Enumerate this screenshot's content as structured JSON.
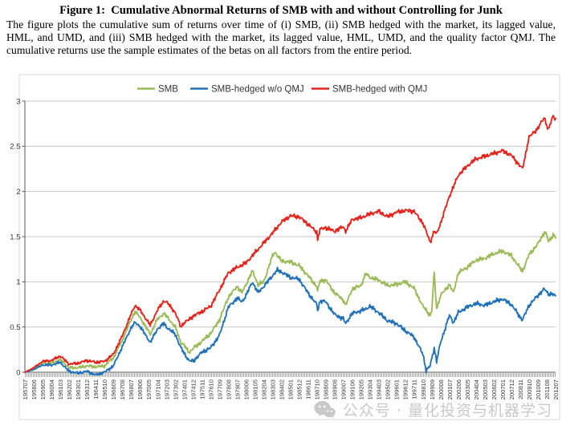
{
  "figure": {
    "title": "Figure 1:  Cumulative Abnormal Returns of SMB with and without Controlling for Junk",
    "caption": "The figure plots the cumulative sum of returns over time of (i) SMB, (ii) SMB hedged with the market, its lagged value, HML, and UMD, and (iii) SMB hedged with the market, its lagged value, HML, UMD, and the quality factor QMJ. The cumulative returns use the sample estimates of the betas on all factors from the entire period."
  },
  "watermark": {
    "icon": "wechat-icon",
    "text": "公众号 · 量化投资与机器学习"
  },
  "chart_data": {
    "type": "line",
    "title": "",
    "xlabel": "",
    "ylabel": "",
    "ylim": [
      0,
      3
    ],
    "y_ticks": [
      "0",
      "0.5",
      "1",
      "1.5",
      "2",
      "2.5",
      "3"
    ],
    "grid": true,
    "legend_position": "top-center",
    "x_months_per_tick": 11,
    "x_tick_labels": [
      "195707",
      "195806",
      "195905",
      "196004",
      "196103",
      "196202",
      "196301",
      "196312",
      "196411",
      "196510",
      "196609",
      "196708",
      "196807",
      "196906",
      "197005",
      "197104",
      "197203",
      "197302",
      "197401",
      "197412",
      "197511",
      "197610",
      "197709",
      "197808",
      "197907",
      "198006",
      "198105",
      "198204",
      "198303",
      "198402",
      "198501",
      "198512",
      "198611",
      "198710",
      "198809",
      "198908",
      "199007",
      "199106",
      "199205",
      "199304",
      "199403",
      "199502",
      "199601",
      "199612",
      "199711",
      "199810",
      "199909",
      "200008",
      "200107",
      "200206",
      "200305",
      "200404",
      "200503",
      "200602",
      "200701",
      "200712",
      "200811",
      "200910",
      "201009",
      "201108",
      "201207"
    ],
    "axis_color": "#595959",
    "grid_color": "#c9c9c9",
    "frame_color": "#d8d8d8",
    "series": [
      {
        "name": "SMB",
        "color": "#9BBB59",
        "points": [
          [
            0,
            0
          ],
          [
            11,
            0.04
          ],
          [
            22,
            0.1
          ],
          [
            33,
            0.1
          ],
          [
            44,
            0.14
          ],
          [
            55,
            0.05
          ],
          [
            66,
            0.05
          ],
          [
            77,
            0.07
          ],
          [
            88,
            0.06
          ],
          [
            99,
            0.07
          ],
          [
            110,
            0.16
          ],
          [
            121,
            0.35
          ],
          [
            132,
            0.58
          ],
          [
            137,
            0.67
          ],
          [
            143,
            0.61
          ],
          [
            156,
            0.42
          ],
          [
            165,
            0.59
          ],
          [
            173,
            0.65
          ],
          [
            176,
            0.62
          ],
          [
            187,
            0.5
          ],
          [
            194,
            0.33
          ],
          [
            198,
            0.3
          ],
          [
            204,
            0.22
          ],
          [
            209,
            0.26
          ],
          [
            220,
            0.34
          ],
          [
            231,
            0.43
          ],
          [
            242,
            0.58
          ],
          [
            253,
            0.83
          ],
          [
            264,
            0.95
          ],
          [
            270,
            0.88
          ],
          [
            275,
            0.97
          ],
          [
            283,
            1.12
          ],
          [
            290,
            0.97
          ],
          [
            297,
            1.0
          ],
          [
            308,
            1.29
          ],
          [
            311,
            1.33
          ],
          [
            319,
            1.23
          ],
          [
            330,
            1.22
          ],
          [
            341,
            1.18
          ],
          [
            352,
            1.07
          ],
          [
            363,
            0.95
          ],
          [
            364,
            0.89
          ],
          [
            367,
            1.01
          ],
          [
            374,
            1.02
          ],
          [
            385,
            0.88
          ],
          [
            396,
            0.8
          ],
          [
            399,
            0.74
          ],
          [
            407,
            0.92
          ],
          [
            418,
            0.96
          ],
          [
            424,
            1.09
          ],
          [
            429,
            1.05
          ],
          [
            440,
            1.02
          ],
          [
            451,
            0.96
          ],
          [
            462,
            0.97
          ],
          [
            473,
            1.0
          ],
          [
            484,
            0.93
          ],
          [
            495,
            0.73
          ],
          [
            504,
            0.63
          ],
          [
            506,
            0.68
          ],
          [
            509,
            1.1
          ],
          [
            512,
            0.7
          ],
          [
            517,
            0.85
          ],
          [
            528,
            0.97
          ],
          [
            533,
            0.88
          ],
          [
            539,
            1.1
          ],
          [
            550,
            1.16
          ],
          [
            561,
            1.24
          ],
          [
            572,
            1.26
          ],
          [
            583,
            1.31
          ],
          [
            594,
            1.34
          ],
          [
            605,
            1.29
          ],
          [
            616,
            1.15
          ],
          [
            619,
            1.12
          ],
          [
            627,
            1.3
          ],
          [
            638,
            1.42
          ],
          [
            646,
            1.55
          ],
          [
            649,
            1.52
          ],
          [
            651,
            1.44
          ],
          [
            657,
            1.52
          ],
          [
            660,
            1.5
          ]
        ]
      },
      {
        "name": "SMB-hedged w/o QMJ",
        "color": "#2272B9",
        "points": [
          [
            0,
            0
          ],
          [
            11,
            0.03
          ],
          [
            22,
            0.08
          ],
          [
            33,
            0.08
          ],
          [
            44,
            0.11
          ],
          [
            55,
            0.01
          ],
          [
            66,
            -0.01
          ],
          [
            77,
            0.01
          ],
          [
            88,
            -0.03
          ],
          [
            99,
            0.0
          ],
          [
            110,
            0.07
          ],
          [
            121,
            0.28
          ],
          [
            132,
            0.49
          ],
          [
            137,
            0.55
          ],
          [
            143,
            0.51
          ],
          [
            156,
            0.33
          ],
          [
            165,
            0.48
          ],
          [
            173,
            0.54
          ],
          [
            176,
            0.5
          ],
          [
            187,
            0.42
          ],
          [
            194,
            0.27
          ],
          [
            198,
            0.21
          ],
          [
            204,
            0.13
          ],
          [
            209,
            0.12
          ],
          [
            220,
            0.22
          ],
          [
            231,
            0.27
          ],
          [
            242,
            0.41
          ],
          [
            253,
            0.72
          ],
          [
            264,
            0.82
          ],
          [
            270,
            0.78
          ],
          [
            275,
            0.85
          ],
          [
            283,
            1.0
          ],
          [
            290,
            0.88
          ],
          [
            297,
            0.95
          ],
          [
            308,
            1.07
          ],
          [
            314,
            1.13
          ],
          [
            319,
            1.11
          ],
          [
            330,
            1.05
          ],
          [
            341,
            1.03
          ],
          [
            352,
            0.88
          ],
          [
            363,
            0.75
          ],
          [
            364,
            0.68
          ],
          [
            367,
            0.79
          ],
          [
            374,
            0.78
          ],
          [
            385,
            0.64
          ],
          [
            396,
            0.59
          ],
          [
            399,
            0.54
          ],
          [
            407,
            0.65
          ],
          [
            418,
            0.68
          ],
          [
            424,
            0.7
          ],
          [
            429,
            0.73
          ],
          [
            440,
            0.66
          ],
          [
            451,
            0.57
          ],
          [
            462,
            0.54
          ],
          [
            473,
            0.46
          ],
          [
            484,
            0.39
          ],
          [
            495,
            0.2
          ],
          [
            499,
            0.02
          ],
          [
            504,
            0.07
          ],
          [
            509,
            0.27
          ],
          [
            512,
            0.12
          ],
          [
            517,
            0.33
          ],
          [
            528,
            0.63
          ],
          [
            533,
            0.55
          ],
          [
            539,
            0.66
          ],
          [
            550,
            0.72
          ],
          [
            561,
            0.76
          ],
          [
            572,
            0.74
          ],
          [
            583,
            0.78
          ],
          [
            594,
            0.81
          ],
          [
            605,
            0.75
          ],
          [
            616,
            0.61
          ],
          [
            619,
            0.58
          ],
          [
            627,
            0.74
          ],
          [
            638,
            0.85
          ],
          [
            646,
            0.92
          ],
          [
            651,
            0.87
          ],
          [
            657,
            0.86
          ],
          [
            660,
            0.84
          ]
        ]
      },
      {
        "name": "SMB-hedged with QMJ",
        "color": "#E4251D",
        "points": [
          [
            0,
            0
          ],
          [
            11,
            0.05
          ],
          [
            22,
            0.12
          ],
          [
            33,
            0.13
          ],
          [
            44,
            0.18
          ],
          [
            55,
            0.09
          ],
          [
            66,
            0.1
          ],
          [
            77,
            0.13
          ],
          [
            88,
            0.11
          ],
          [
            99,
            0.12
          ],
          [
            110,
            0.2
          ],
          [
            121,
            0.4
          ],
          [
            132,
            0.64
          ],
          [
            137,
            0.74
          ],
          [
            143,
            0.69
          ],
          [
            156,
            0.52
          ],
          [
            165,
            0.69
          ],
          [
            173,
            0.79
          ],
          [
            176,
            0.78
          ],
          [
            187,
            0.66
          ],
          [
            194,
            0.5
          ],
          [
            198,
            0.55
          ],
          [
            204,
            0.58
          ],
          [
            209,
            0.62
          ],
          [
            220,
            0.67
          ],
          [
            231,
            0.73
          ],
          [
            242,
            0.91
          ],
          [
            253,
            1.1
          ],
          [
            264,
            1.16
          ],
          [
            275,
            1.21
          ],
          [
            286,
            1.32
          ],
          [
            297,
            1.43
          ],
          [
            308,
            1.54
          ],
          [
            319,
            1.66
          ],
          [
            330,
            1.73
          ],
          [
            341,
            1.72
          ],
          [
            352,
            1.64
          ],
          [
            363,
            1.55
          ],
          [
            364,
            1.47
          ],
          [
            367,
            1.58
          ],
          [
            374,
            1.6
          ],
          [
            385,
            1.56
          ],
          [
            396,
            1.61
          ],
          [
            399,
            1.56
          ],
          [
            407,
            1.69
          ],
          [
            418,
            1.71
          ],
          [
            429,
            1.75
          ],
          [
            440,
            1.78
          ],
          [
            451,
            1.72
          ],
          [
            462,
            1.77
          ],
          [
            473,
            1.79
          ],
          [
            484,
            1.78
          ],
          [
            495,
            1.65
          ],
          [
            504,
            1.44
          ],
          [
            509,
            1.56
          ],
          [
            512,
            1.53
          ],
          [
            517,
            1.65
          ],
          [
            528,
            1.95
          ],
          [
            533,
            2.05
          ],
          [
            539,
            2.18
          ],
          [
            550,
            2.28
          ],
          [
            561,
            2.36
          ],
          [
            572,
            2.39
          ],
          [
            583,
            2.42
          ],
          [
            594,
            2.45
          ],
          [
            605,
            2.4
          ],
          [
            616,
            2.28
          ],
          [
            619,
            2.25
          ],
          [
            627,
            2.6
          ],
          [
            638,
            2.7
          ],
          [
            646,
            2.82
          ],
          [
            651,
            2.68
          ],
          [
            657,
            2.84
          ],
          [
            660,
            2.8
          ]
        ]
      }
    ]
  }
}
